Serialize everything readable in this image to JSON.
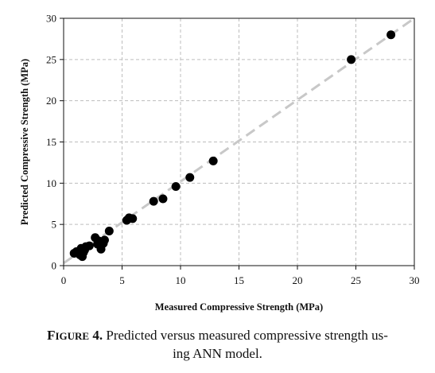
{
  "chart_data": {
    "type": "scatter",
    "xlabel": "Measured Compressive Strength (MPa)",
    "ylabel": "Predicted Compressive Strength (MPa)",
    "xlim": [
      0,
      30
    ],
    "ylim": [
      0,
      30
    ],
    "x_ticks": [
      "0",
      "5",
      "10",
      "15",
      "20",
      "25",
      "30"
    ],
    "y_ticks": [
      "0",
      "5",
      "10",
      "15",
      "20",
      "25",
      "30"
    ],
    "grid": true,
    "reference_line": {
      "style": "dashed",
      "color": "#c8c8c8",
      "from": [
        0,
        0.3
      ],
      "to": [
        30,
        30
      ]
    },
    "point_color": "#000000",
    "points": [
      [
        0.9,
        1.5
      ],
      [
        1.1,
        1.7
      ],
      [
        1.4,
        1.3
      ],
      [
        1.6,
        1.1
      ],
      [
        1.7,
        1.6
      ],
      [
        1.5,
        2.1
      ],
      [
        1.9,
        2.3
      ],
      [
        1.8,
        1.9
      ],
      [
        2.2,
        2.4
      ],
      [
        2.7,
        3.4
      ],
      [
        2.9,
        2.6
      ],
      [
        3.0,
        3.0
      ],
      [
        3.2,
        2.0
      ],
      [
        3.4,
        2.7
      ],
      [
        3.5,
        3.1
      ],
      [
        3.9,
        4.2
      ],
      [
        5.4,
        5.5
      ],
      [
        5.6,
        5.8
      ],
      [
        5.9,
        5.7
      ],
      [
        7.7,
        7.8
      ],
      [
        8.5,
        8.1
      ],
      [
        9.6,
        9.6
      ],
      [
        10.8,
        10.7
      ],
      [
        12.8,
        12.7
      ],
      [
        24.6,
        25.0
      ],
      [
        28.0,
        28.0
      ]
    ]
  },
  "caption": {
    "figure_first": "F",
    "figure_rest": "IGURE",
    "figure_number": " 4.",
    "line1": " Predicted versus measured compressive strength us-",
    "line2": "ing ANN model."
  }
}
